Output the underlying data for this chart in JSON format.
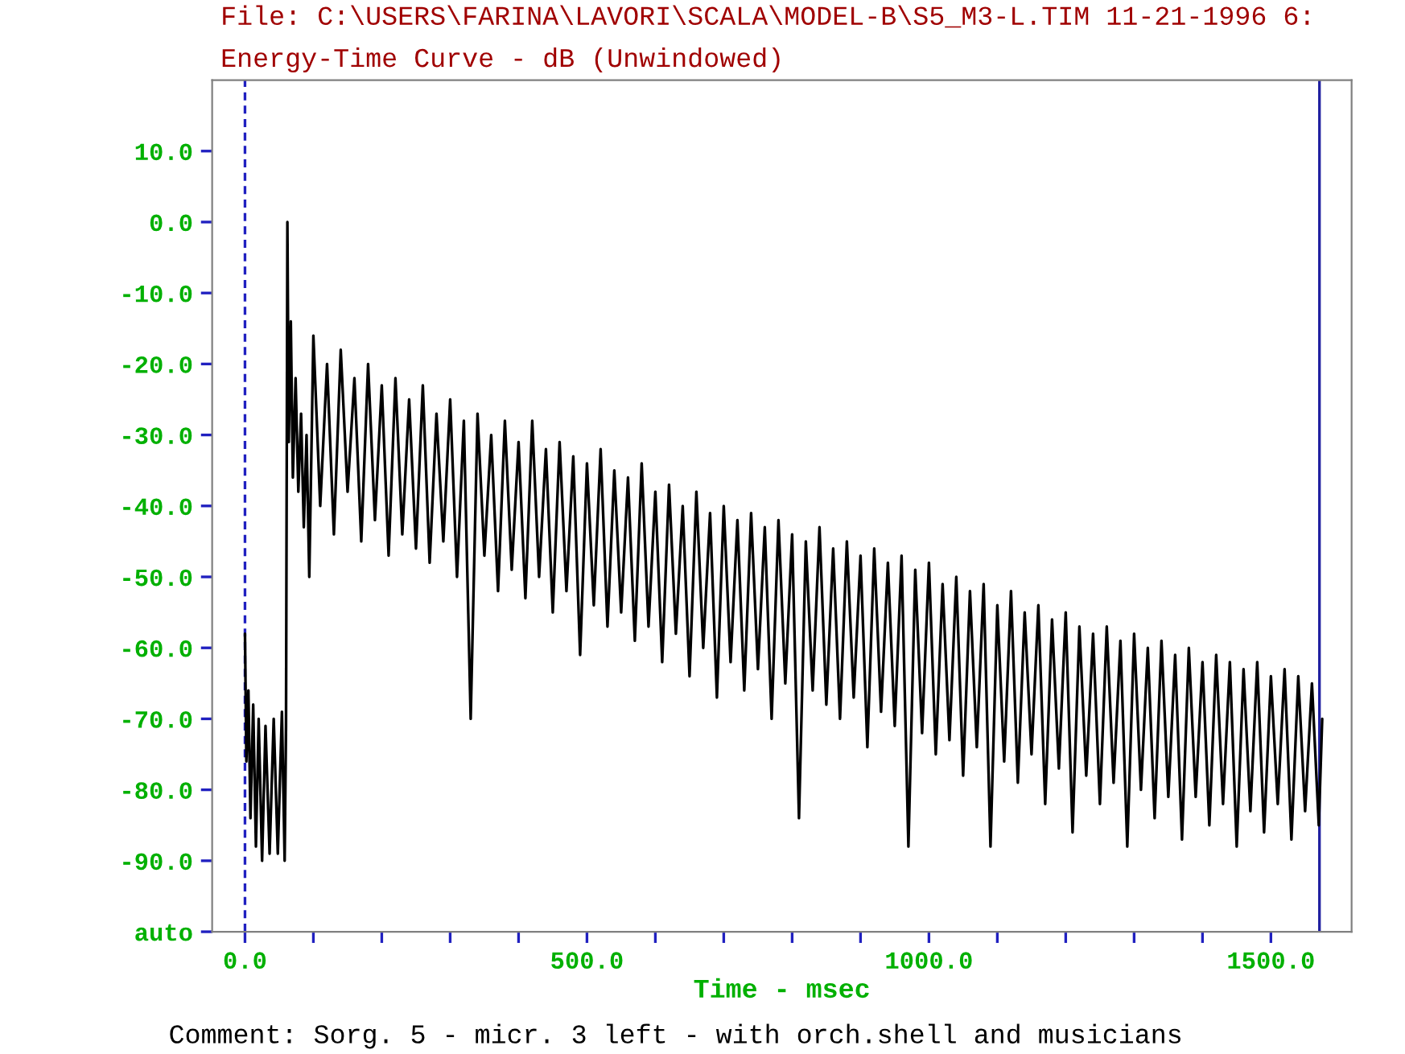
{
  "chart_data": {
    "type": "line",
    "title": "File: C:\\USERS\\FARINA\\LAVORI\\SCALA\\MODEL-B\\S5_M3-L.TIM 11-21-1996 6:",
    "subtitle": "Energy-Time Curve - dB (Unwindowed)",
    "xlabel": "Time - msec",
    "annotations": [
      "Comment: Sorg. 5 - micr. 3 left - with orch.shell and musicians"
    ],
    "series": [
      {
        "color": "#000000",
        "x": [
          0,
          2,
          5,
          8,
          12,
          16,
          20,
          25,
          30,
          36,
          42,
          48,
          54,
          58,
          60,
          62,
          64,
          67,
          70,
          74,
          78,
          82,
          86,
          90,
          94,
          100,
          110,
          120,
          130,
          140,
          150,
          160,
          170,
          180,
          190,
          200,
          210,
          220,
          230,
          240,
          250,
          260,
          270,
          280,
          290,
          300,
          310,
          320,
          330,
          340,
          350,
          360,
          370,
          380,
          390,
          400,
          410,
          420,
          430,
          440,
          450,
          460,
          470,
          480,
          490,
          500,
          510,
          520,
          530,
          540,
          550,
          560,
          570,
          580,
          590,
          600,
          610,
          620,
          630,
          640,
          650,
          660,
          670,
          680,
          690,
          700,
          710,
          720,
          730,
          740,
          750,
          760,
          770,
          780,
          790,
          800,
          810,
          820,
          830,
          840,
          850,
          860,
          870,
          880,
          890,
          900,
          910,
          920,
          930,
          940,
          950,
          960,
          970,
          980,
          990,
          1000,
          1010,
          1020,
          1030,
          1040,
          1050,
          1060,
          1070,
          1080,
          1090,
          1100,
          1110,
          1120,
          1130,
          1140,
          1150,
          1160,
          1170,
          1180,
          1190,
          1200,
          1210,
          1220,
          1230,
          1240,
          1250,
          1260,
          1270,
          1280,
          1290,
          1300,
          1310,
          1320,
          1330,
          1340,
          1350,
          1360,
          1370,
          1380,
          1390,
          1400,
          1410,
          1420,
          1430,
          1440,
          1450,
          1460,
          1470,
          1480,
          1490,
          1500,
          1510,
          1520,
          1530,
          1540,
          1550,
          1560,
          1570,
          1575
        ],
        "values": [
          -58,
          -76,
          -66,
          -84,
          -68,
          -88,
          -70,
          -90,
          -71,
          -89,
          -70,
          -89,
          -69,
          -90,
          -71,
          0,
          -31,
          -14,
          -36,
          -22,
          -38,
          -27,
          -43,
          -30,
          -50,
          -16,
          -40,
          -20,
          -44,
          -18,
          -38,
          -22,
          -45,
          -20,
          -42,
          -23,
          -47,
          -22,
          -44,
          -25,
          -46,
          -23,
          -48,
          -27,
          -45,
          -25,
          -50,
          -28,
          -70,
          -27,
          -47,
          -30,
          -52,
          -28,
          -49,
          -31,
          -53,
          -28,
          -50,
          -32,
          -55,
          -31,
          -52,
          -33,
          -61,
          -34,
          -54,
          -32,
          -57,
          -35,
          -55,
          -36,
          -59,
          -34,
          -57,
          -38,
          -62,
          -37,
          -58,
          -40,
          -64,
          -38,
          -60,
          -41,
          -67,
          -40,
          -62,
          -42,
          -66,
          -41,
          -63,
          -43,
          -70,
          -42,
          -65,
          -44,
          -84,
          -45,
          -66,
          -43,
          -68,
          -46,
          -70,
          -45,
          -67,
          -47,
          -74,
          -46,
          -69,
          -48,
          -71,
          -47,
          -88,
          -49,
          -72,
          -48,
          -75,
          -51,
          -73,
          -50,
          -78,
          -52,
          -74,
          -51,
          -88,
          -54,
          -76,
          -52,
          -79,
          -55,
          -75,
          -54,
          -82,
          -56,
          -77,
          -55,
          -86,
          -57,
          -78,
          -58,
          -82,
          -57,
          -79,
          -59,
          -88,
          -58,
          -80,
          -60,
          -84,
          -59,
          -81,
          -61,
          -87,
          -60,
          -81,
          -62,
          -85,
          -61,
          -82,
          -62,
          -88,
          -63,
          -83,
          -62,
          -86,
          -64,
          -82,
          -63,
          -87,
          -64,
          -83,
          -65,
          -85,
          -70
        ]
      }
    ],
    "xlim": [
      -48,
      1618
    ],
    "ylim": [
      -100,
      20
    ],
    "xticks": [
      {
        "value": 0,
        "label": "0.0"
      },
      {
        "value": 100,
        "label": null
      },
      {
        "value": 200,
        "label": null
      },
      {
        "value": 300,
        "label": null
      },
      {
        "value": 400,
        "label": null
      },
      {
        "value": 500,
        "label": "500.0"
      },
      {
        "value": 600,
        "label": null
      },
      {
        "value": 700,
        "label": null
      },
      {
        "value": 800,
        "label": null
      },
      {
        "value": 900,
        "label": null
      },
      {
        "value": 1000,
        "label": "1000.0"
      },
      {
        "value": 1100,
        "label": null
      },
      {
        "value": 1200,
        "label": null
      },
      {
        "value": 1300,
        "label": null
      },
      {
        "value": 1400,
        "label": null
      },
      {
        "value": 1500,
        "label": "1500.0"
      }
    ],
    "yticks": [
      {
        "value": 10,
        "label": "10.0"
      },
      {
        "value": 0,
        "label": "0.0"
      },
      {
        "value": -10,
        "label": "-10.0"
      },
      {
        "value": -20,
        "label": "-20.0"
      },
      {
        "value": -30,
        "label": "-30.0"
      },
      {
        "value": -40,
        "label": "-40.0"
      },
      {
        "value": -50,
        "label": "-50.0"
      },
      {
        "value": -60,
        "label": "-60.0"
      },
      {
        "value": -70,
        "label": "-70.0"
      },
      {
        "value": -80,
        "label": "-80.0"
      },
      {
        "value": -90,
        "label": "-90.0"
      },
      {
        "value": -100,
        "label": "auto"
      }
    ],
    "ref_lines": [
      {
        "axis": "x",
        "value": 0,
        "color": "#2020c0",
        "line_style": "dashed"
      },
      {
        "axis": "x",
        "value": 1571,
        "color": "#2020a0",
        "line_style": "solid"
      }
    ],
    "grid": false,
    "line_style": "solid",
    "marker": "none"
  }
}
